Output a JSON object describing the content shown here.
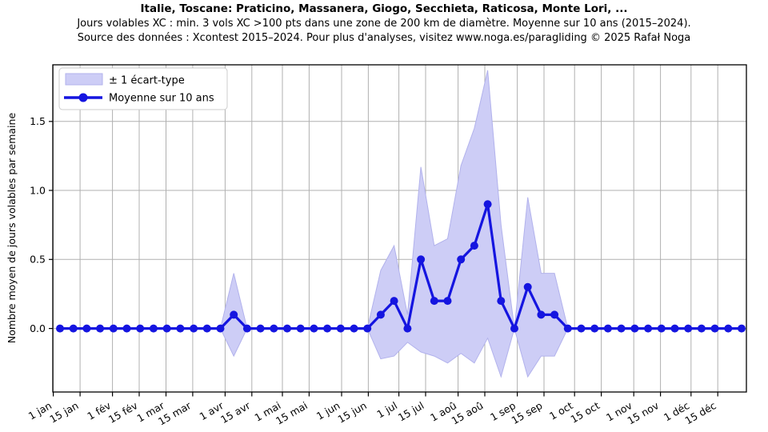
{
  "header": {
    "title": "Italie, Toscane: Praticino, Massanera, Giogo, Secchieta, Raticosa, Monte Lori, ...",
    "subtitle": "Jours volables XC : min. 3 vols XC >100 pts dans une zone de 200 km de diamètre. Moyenne sur 10 ans (2015–2024).",
    "source": "Source des données : Xcontest 2015–2024. Pour plus d'analyses, visitez www.noga.es/paragliding © 2025 Rafał Noga"
  },
  "chart_data": {
    "type": "line",
    "title": "Italie, Toscane: Praticino, Massanera, Giogo, Secchieta, Raticosa, Monte Lori, ...",
    "xlabel": "",
    "ylabel": "Nombre moyen de jours volables par semaine",
    "legend_band_label": "± 1 écart-type",
    "legend_line_label": "Moyenne sur 10 ans",
    "legend_position": "upper left",
    "grid": true,
    "x_unit": "semaine de l'année (52 points hebdomadaires)",
    "ylim": [
      -0.46,
      1.91
    ],
    "y_ticks": [
      0.0,
      0.5,
      1.0,
      1.5
    ],
    "y_tick_labels": [
      "0.0",
      "0.5",
      "1.0",
      "1.5"
    ],
    "x_tick_labels": [
      "1 jan",
      "15 jan",
      "1 fév",
      "15 fév",
      "1 mar",
      "15 mar",
      "1 avr",
      "15 avr",
      "1 mai",
      "15 mai",
      "1 jun",
      "15 jun",
      "1 jul",
      "15 jul",
      "1 aoû",
      "15 aoû",
      "1 sep",
      "15 sep",
      "1 oct",
      "15 oct",
      "1 nov",
      "15 nov",
      "1 déc",
      "15 déc"
    ],
    "x_tick_days": [
      0,
      14,
      31,
      45,
      59,
      73,
      90,
      104,
      120,
      134,
      151,
      165,
      181,
      195,
      212,
      226,
      243,
      257,
      273,
      287,
      304,
      318,
      334,
      348
    ],
    "mean": [
      0,
      0,
      0,
      0,
      0,
      0,
      0,
      0,
      0,
      0,
      0,
      0,
      0,
      0.1,
      0,
      0,
      0,
      0,
      0,
      0,
      0,
      0,
      0,
      0,
      0.1,
      0.2,
      0,
      0.5,
      0.2,
      0.2,
      0.5,
      0.6,
      0.9,
      0.2,
      0,
      0.3,
      0.1,
      0.1,
      0,
      0,
      0,
      0,
      0,
      0,
      0,
      0,
      0,
      0,
      0,
      0,
      0,
      0
    ],
    "band_upper": [
      0,
      0,
      0,
      0,
      0,
      0,
      0,
      0,
      0,
      0,
      0,
      0,
      0,
      0.4,
      0,
      0,
      0,
      0,
      0,
      0,
      0,
      0,
      0,
      0,
      0.42,
      0.6,
      0.1,
      1.17,
      0.6,
      0.65,
      1.18,
      1.45,
      1.87,
      0.75,
      0,
      0.95,
      0.4,
      0.4,
      0,
      0,
      0,
      0,
      0,
      0,
      0,
      0,
      0,
      0,
      0,
      0,
      0,
      0
    ],
    "band_lower": [
      0,
      0,
      0,
      0,
      0,
      0,
      0,
      0,
      0,
      0,
      0,
      0,
      0,
      -0.2,
      0,
      0,
      0,
      0,
      0,
      0,
      0,
      0,
      0,
      0,
      -0.22,
      -0.2,
      -0.1,
      -0.17,
      -0.2,
      -0.25,
      -0.18,
      -0.25,
      -0.07,
      -0.35,
      0,
      -0.35,
      -0.2,
      -0.2,
      0,
      0,
      0,
      0,
      0,
      0,
      0,
      0,
      0,
      0,
      0,
      0,
      0,
      0
    ],
    "colors": {
      "line": "#1515e0",
      "band": "#cdcdf6",
      "band_edge": "#b2b2ec",
      "grid": "#b0b0b0",
      "axis": "#000000"
    }
  }
}
